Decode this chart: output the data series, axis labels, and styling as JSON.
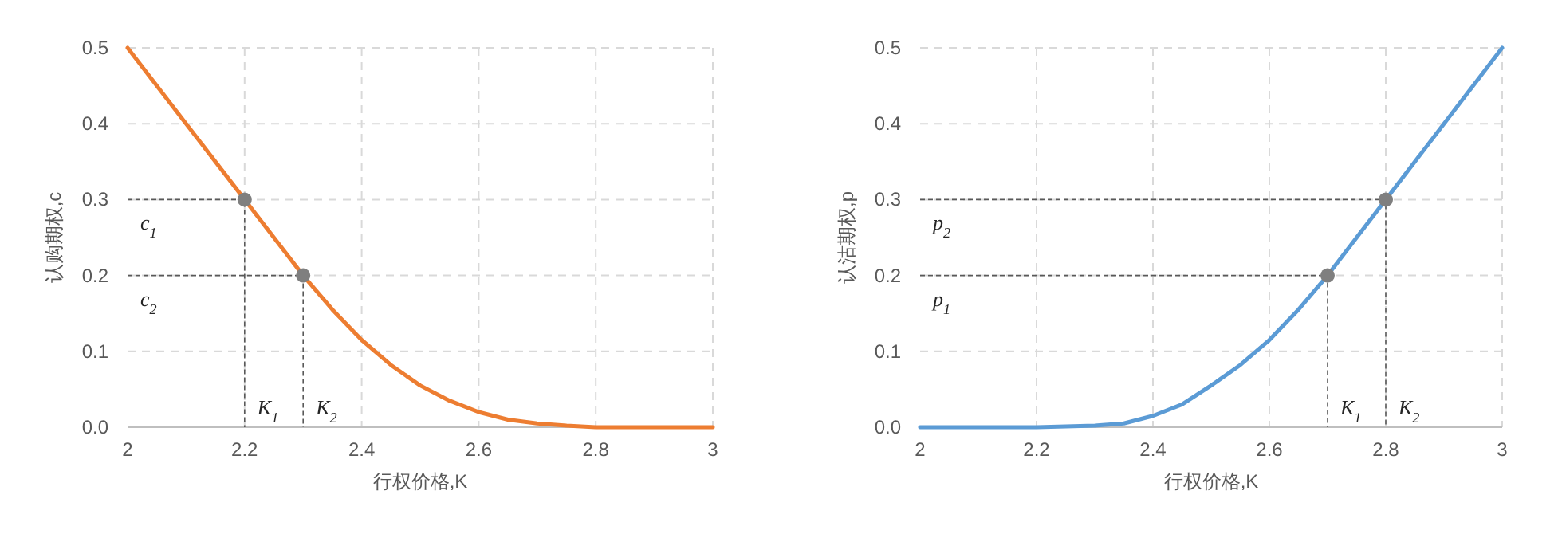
{
  "chart_data": [
    {
      "type": "line",
      "xlabel": "行权价格,K",
      "ylabel": "认购期权,c",
      "xlim": [
        2,
        3
      ],
      "ylim": [
        0,
        0.5
      ],
      "xticks": [
        2,
        2.2,
        2.4,
        2.6,
        2.8,
        3
      ],
      "yticks": [
        {
          "value": 0,
          "label": "0.0"
        },
        {
          "value": 0.1,
          "label": "0.1"
        },
        {
          "value": 0.2,
          "label": "0.2"
        },
        {
          "value": 0.3,
          "label": "0.3"
        },
        {
          "value": 0.4,
          "label": "0.4"
        },
        {
          "value": 0.5,
          "label": "0.5"
        }
      ],
      "grid": true,
      "series": [
        {
          "type": "line",
          "color": "#ed7d31",
          "marker": "none",
          "x": [
            2.0,
            2.1,
            2.2,
            2.25,
            2.3,
            2.35,
            2.4,
            2.45,
            2.5,
            2.55,
            2.6,
            2.65,
            2.7,
            2.75,
            2.8,
            2.9,
            3.0
          ],
          "values": [
            0.5,
            0.4,
            0.3,
            0.25,
            0.2,
            0.155,
            0.115,
            0.082,
            0.055,
            0.035,
            0.02,
            0.01,
            0.005,
            0.002,
            0,
            0,
            0
          ]
        },
        {
          "type": "scatter",
          "color": "#7f7f7f",
          "marker": "circle",
          "x": [
            2.2,
            2.3
          ],
          "values": [
            0.3,
            0.2
          ]
        }
      ],
      "annotations": [
        "c$_{1}$",
        "c$_{2}$",
        "K$_{1}$",
        "K$_{2}$"
      ]
    },
    {
      "type": "line",
      "xlabel": "行权价格,K",
      "ylabel": "认沽期权,p",
      "xlim": [
        2,
        3
      ],
      "ylim": [
        0,
        0.5
      ],
      "xticks": [
        2,
        2.2,
        2.4,
        2.6,
        2.8,
        3
      ],
      "yticks": [
        {
          "value": 0,
          "label": "0.0"
        },
        {
          "value": 0.1,
          "label": "0.1"
        },
        {
          "value": 0.2,
          "label": "0.2"
        },
        {
          "value": 0.3,
          "label": "0.3"
        },
        {
          "value": 0.4,
          "label": "0.4"
        },
        {
          "value": 0.5,
          "label": "0.5"
        }
      ],
      "grid": true,
      "series": [
        {
          "type": "line",
          "color": "#5b9bd5",
          "marker": "none",
          "x": [
            2.0,
            2.1,
            2.2,
            2.25,
            2.3,
            2.35,
            2.4,
            2.45,
            2.5,
            2.55,
            2.6,
            2.65,
            2.7,
            2.8,
            2.9,
            3.0
          ],
          "values": [
            0,
            0,
            0,
            0.001,
            0.002,
            0.005,
            0.015,
            0.03,
            0.055,
            0.082,
            0.115,
            0.155,
            0.2,
            0.3,
            0.4,
            0.5
          ]
        },
        {
          "type": "scatter",
          "color": "#7f7f7f",
          "marker": "circle",
          "x": [
            2.7,
            2.8
          ],
          "values": [
            0.2,
            0.3
          ]
        }
      ],
      "annotations": [
        "p$_{1}$",
        "p$_{2}$",
        "K$_{1}$",
        "K$_{2}$"
      ]
    }
  ]
}
